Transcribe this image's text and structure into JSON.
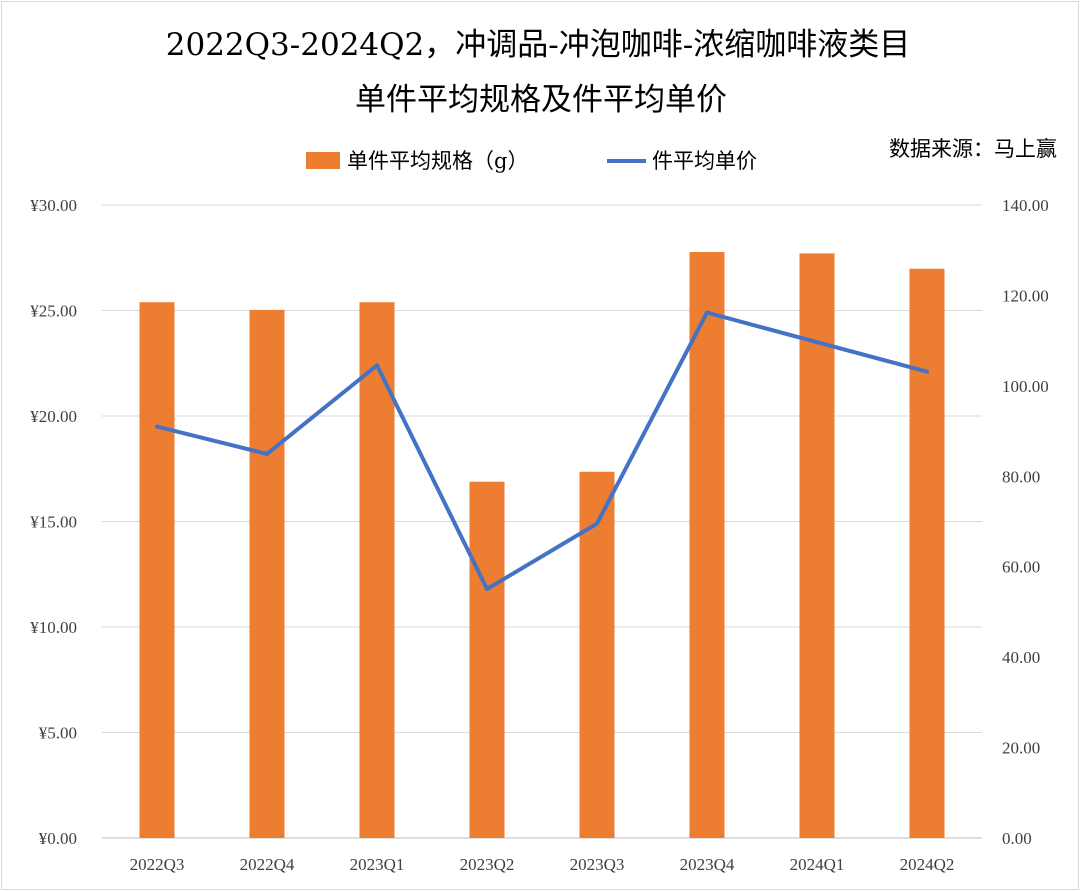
{
  "chart_data": {
    "type": "bar+line",
    "title": "2022Q3-2024Q2，冲调品-冲泡咖啡-浓缩咖啡液类目",
    "subtitle": "单件平均规格及件平均单价",
    "source": "数据来源：马上赢",
    "categories": [
      "2022Q3",
      "2022Q4",
      "2023Q1",
      "2023Q2",
      "2023Q3",
      "2023Q4",
      "2024Q1",
      "2024Q2"
    ],
    "series": [
      {
        "name": "单件平均规格（g）",
        "type": "bar",
        "axis": "right",
        "color": "#ED7D31",
        "values": [
          118.5,
          116.8,
          118.5,
          78.8,
          81.0,
          129.6,
          129.3,
          125.9
        ]
      },
      {
        "name": "件平均单价",
        "type": "line",
        "axis": "left",
        "color": "#4472C4",
        "values": [
          19.5,
          18.2,
          22.4,
          11.8,
          14.9,
          24.9,
          23.5,
          22.1
        ]
      }
    ],
    "y_left": {
      "min": 0,
      "max": 30,
      "step": 5,
      "ticks": [
        "¥0.00",
        "¥5.00",
        "¥10.00",
        "¥15.00",
        "¥20.00",
        "¥25.00",
        "¥30.00"
      ]
    },
    "y_right": {
      "min": 0,
      "max": 140,
      "step": 20,
      "ticks": [
        "0.00",
        "20.00",
        "40.00",
        "60.00",
        "80.00",
        "100.00",
        "120.00",
        "140.00"
      ]
    },
    "grid": true,
    "legend": "top-center"
  }
}
